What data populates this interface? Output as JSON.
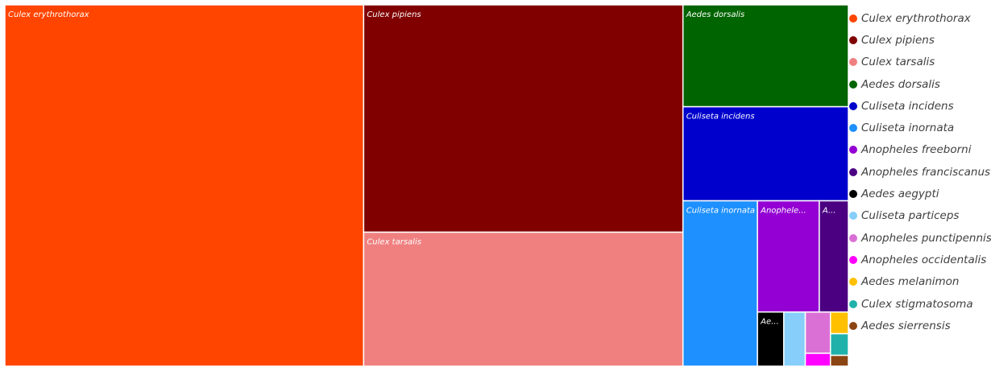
{
  "chart_data": {
    "type": "treemap",
    "items": [
      {
        "name": "Culex erythrothorax",
        "label": "Culex erythrothorax",
        "value": 1000,
        "color": "#FF4500"
      },
      {
        "name": "Culex pipiens",
        "label": "Culex pipiens",
        "value": 560,
        "color": "#800000"
      },
      {
        "name": "Culex tarsalis",
        "label": "Culex tarsalis",
        "value": 330,
        "color": "#F08080"
      },
      {
        "name": "Aedes dorsalis",
        "label": "Aedes dorsalis",
        "value": 130,
        "color": "#006400"
      },
      {
        "name": "Culiseta incidens",
        "label": "Culiseta incidens",
        "value": 120,
        "color": "#0000CD"
      },
      {
        "name": "Culiseta inornata",
        "label": "Culiseta inornata",
        "value": 95,
        "color": "#1E90FF"
      },
      {
        "name": "Anopheles freeborni",
        "label": "Anophele...",
        "value": 53,
        "color": "#9400D3"
      },
      {
        "name": "Anopheles franciscanus",
        "label": "A...",
        "value": 25,
        "color": "#4B0082"
      },
      {
        "name": "Aedes aegypti",
        "label": "Ae...",
        "value": 11,
        "color": "#000000"
      },
      {
        "name": "Culiseta particeps",
        "label": "",
        "value": 9,
        "color": "#87CEFA"
      },
      {
        "name": "Anopheles punctipennis",
        "label": "",
        "value": 8,
        "color": "#DA70D6"
      },
      {
        "name": "Anopheles occidentalis",
        "label": "",
        "value": 2.5,
        "color": "#FF00FF"
      },
      {
        "name": "Aedes melanimon",
        "label": "",
        "value": 3,
        "color": "#FFC000"
      },
      {
        "name": "Culex stigmatosoma",
        "label": "",
        "value": 3,
        "color": "#20B2AA"
      },
      {
        "name": "Aedes sierrensis",
        "label": "",
        "value": 1.5,
        "color": "#8B4513"
      }
    ],
    "legend_position": "right"
  }
}
